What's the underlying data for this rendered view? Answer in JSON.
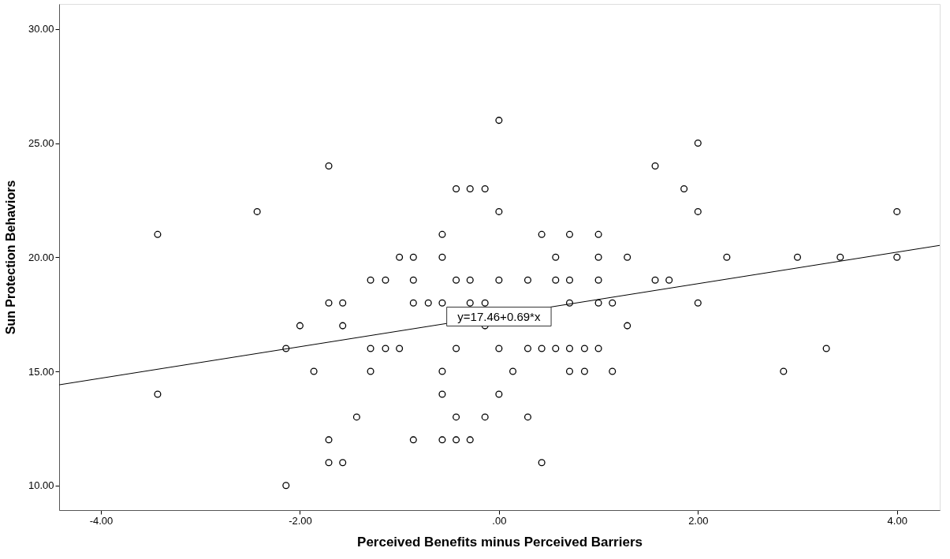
{
  "chart_data": {
    "type": "scatter",
    "xlabel": "Perceived Benefits minus Perceived Barriers",
    "ylabel": "Sun Protection Behaviors",
    "xlim": [
      -4.42,
      4.43
    ],
    "ylim": [
      8.92,
      31.1
    ],
    "xticks": [
      {
        "value": -4,
        "label": "-4.00"
      },
      {
        "value": -2,
        "label": "-2.00"
      },
      {
        "value": 0,
        "label": ".00"
      },
      {
        "value": 2,
        "label": "2.00"
      },
      {
        "value": 4,
        "label": "4.00"
      }
    ],
    "yticks": [
      {
        "value": 10,
        "label": "10.00"
      },
      {
        "value": 15,
        "label": "15.00"
      },
      {
        "value": 20,
        "label": "20.00"
      },
      {
        "value": 25,
        "label": "25.00"
      },
      {
        "value": 30,
        "label": "30.00"
      }
    ],
    "grid": false,
    "annotations": [
      {
        "text": "y=17.46+0.69*x",
        "x": 0.0,
        "y": 17.4
      }
    ],
    "series": [
      {
        "marker": "circle",
        "color": "#000000",
        "x": [
          0.0,
          -1.71,
          1.57,
          2.0,
          -0.43,
          -0.29,
          -0.14,
          1.86,
          -2.43,
          0.0,
          2.0,
          4.0,
          -3.43,
          -0.57,
          0.43,
          0.71,
          1.0,
          -1.0,
          -0.86,
          -0.57,
          0.57,
          1.0,
          1.29,
          2.29,
          3.0,
          3.43,
          4.0,
          -1.29,
          -1.14,
          -0.86,
          -0.43,
          -0.29,
          0.0,
          0.29,
          0.57,
          0.71,
          1.0,
          1.57,
          1.71,
          -1.71,
          -1.57,
          -0.86,
          -0.71,
          -0.57,
          -0.29,
          -0.14,
          0.71,
          1.0,
          1.14,
          2.0,
          -2.0,
          -1.57,
          -0.14,
          1.29,
          -2.14,
          -1.29,
          -1.14,
          -1.0,
          -0.43,
          0.0,
          0.29,
          0.43,
          0.57,
          0.71,
          0.86,
          1.0,
          3.29,
          -1.86,
          -1.29,
          -0.57,
          0.14,
          0.71,
          0.86,
          1.14,
          2.86,
          -3.43,
          -0.57,
          0.0,
          -1.43,
          -0.43,
          -0.14,
          0.29,
          -1.71,
          -0.86,
          -0.57,
          -0.43,
          -0.29,
          -1.71,
          -1.57,
          0.43,
          -2.14
        ],
        "values": [
          26,
          24,
          24,
          25,
          23,
          23,
          23,
          23,
          22,
          22,
          22,
          22,
          21,
          21,
          21,
          21,
          21,
          20,
          20,
          20,
          20,
          20,
          20,
          20,
          20,
          20,
          20,
          19,
          19,
          19,
          19,
          19,
          19,
          19,
          19,
          19,
          19,
          19,
          19,
          18,
          18,
          18,
          18,
          18,
          18,
          18,
          18,
          18,
          18,
          18,
          17,
          17,
          17,
          17,
          16,
          16,
          16,
          16,
          16,
          16,
          16,
          16,
          16,
          16,
          16,
          16,
          16,
          15,
          15,
          15,
          15,
          15,
          15,
          15,
          15,
          14,
          14,
          14,
          13,
          13,
          13,
          13,
          12,
          12,
          12,
          12,
          12,
          11,
          11,
          11,
          10
        ]
      },
      {
        "type": "line",
        "marker": "none",
        "color": "#000000",
        "x": [
          -4.42,
          4.43
        ],
        "values": [
          14.41,
          20.52
        ]
      }
    ]
  }
}
